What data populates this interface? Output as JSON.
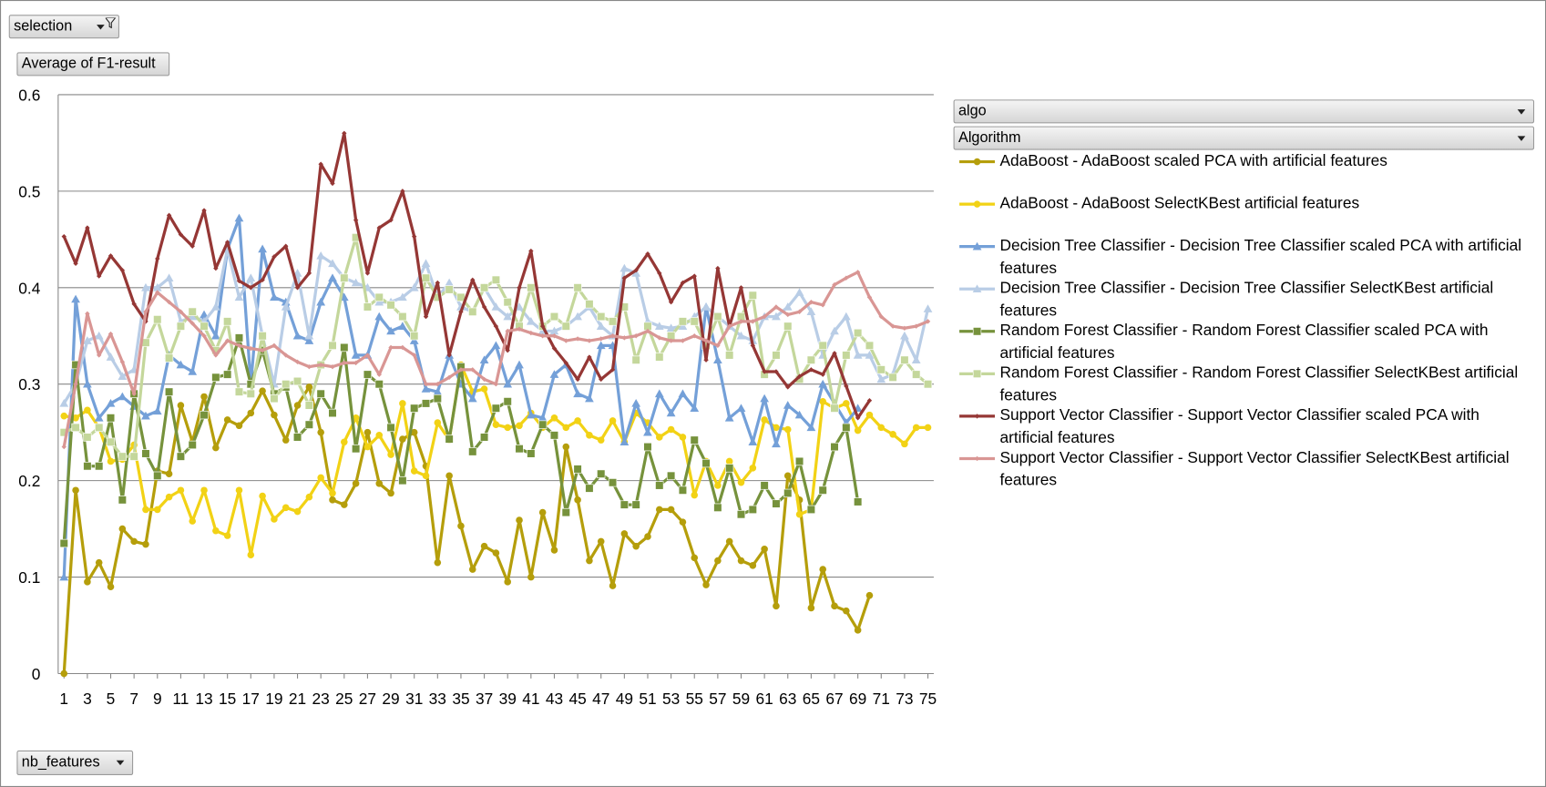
{
  "controls": {
    "report_filter": "selection",
    "values_field": "Average of F1-result",
    "legend_field": "algo",
    "legend_field_2": "Algorithm",
    "axis_field": "nb_features"
  },
  "chart_data": {
    "type": "line",
    "x": [
      1,
      2,
      3,
      4,
      5,
      6,
      7,
      8,
      9,
      10,
      11,
      12,
      13,
      14,
      15,
      16,
      17,
      18,
      19,
      20,
      21,
      22,
      23,
      24,
      25,
      26,
      27,
      28,
      29,
      30,
      31,
      32,
      33,
      34,
      35,
      36,
      37,
      38,
      39,
      40,
      41,
      42,
      43,
      44,
      45,
      46,
      47,
      48,
      49,
      50,
      51,
      52,
      53,
      54,
      55,
      56,
      57,
      58,
      59,
      60,
      61,
      62,
      63,
      64,
      65,
      66,
      67,
      68,
      69,
      70,
      71,
      72,
      73,
      74,
      75
    ],
    "xlim": [
      0.5,
      75.5
    ],
    "xticks": [
      1,
      3,
      5,
      7,
      9,
      11,
      13,
      15,
      17,
      19,
      21,
      23,
      25,
      27,
      29,
      31,
      33,
      35,
      37,
      39,
      41,
      43,
      45,
      47,
      49,
      51,
      53,
      55,
      57,
      59,
      61,
      63,
      65,
      67,
      69,
      71,
      73,
      75
    ],
    "ylim": [
      0,
      0.6
    ],
    "yticks": [
      0,
      0.1,
      0.2,
      0.3,
      0.4,
      0.5,
      0.6
    ],
    "grid": true,
    "legend": "right",
    "series": [
      {
        "name": "AdaBoost - AdaBoost scaled PCA with artificial features",
        "color": "#b59e0b",
        "marker": "circle",
        "values": [
          0.0,
          0.19,
          0.095,
          0.115,
          0.09,
          0.15,
          0.137,
          0.134,
          0.21,
          0.207,
          0.278,
          0.24,
          0.287,
          0.234,
          0.263,
          0.257,
          0.27,
          0.293,
          0.268,
          0.242,
          0.278,
          0.297,
          0.25,
          0.18,
          0.175,
          0.197,
          0.25,
          0.197,
          0.187,
          0.243,
          0.25,
          0.215,
          0.115,
          0.205,
          0.153,
          0.108,
          0.132,
          0.125,
          0.095,
          0.159,
          0.1,
          0.167,
          0.128,
          0.235,
          0.18,
          0.117,
          0.137,
          0.091,
          0.145,
          0.132,
          0.142,
          0.17,
          0.17,
          0.157,
          0.12,
          0.092,
          0.117,
          0.137,
          0.117,
          0.112,
          0.129,
          0.07,
          0.205,
          0.18,
          0.068,
          0.108,
          0.07,
          0.065,
          0.045,
          0.081,
          null,
          null,
          null,
          null,
          null
        ]
      },
      {
        "name": "AdaBoost - AdaBoost SelectKBest artificial features",
        "color": "#f2d215",
        "marker": "circle",
        "values": [
          0.267,
          0.265,
          0.273,
          0.255,
          0.22,
          0.222,
          0.237,
          0.17,
          0.17,
          0.183,
          0.19,
          0.158,
          0.19,
          0.148,
          0.143,
          0.19,
          0.123,
          0.184,
          0.16,
          0.172,
          0.168,
          0.183,
          0.203,
          0.187,
          0.24,
          0.265,
          0.235,
          0.247,
          0.227,
          0.28,
          0.21,
          0.205,
          0.26,
          0.242,
          0.32,
          0.292,
          0.295,
          0.258,
          0.255,
          0.257,
          0.27,
          0.255,
          0.265,
          0.255,
          0.262,
          0.247,
          0.242,
          0.262,
          0.24,
          0.27,
          0.26,
          0.245,
          0.253,
          0.245,
          0.185,
          0.22,
          0.195,
          0.22,
          0.198,
          0.213,
          0.263,
          0.255,
          0.253,
          0.165,
          0.17,
          0.282,
          0.275,
          0.28,
          0.252,
          0.268,
          0.255,
          0.248,
          0.238,
          0.255,
          0.255
        ]
      },
      {
        "name": "Decision Tree Classifier - Decision Tree Classifier scaled PCA with artificial features",
        "color": "#74a0d8",
        "marker": "triangle",
        "values": [
          0.1,
          0.388,
          0.3,
          0.265,
          0.28,
          0.287,
          0.277,
          0.267,
          0.272,
          0.33,
          0.32,
          0.313,
          0.372,
          0.35,
          0.44,
          0.472,
          0.3,
          0.44,
          0.39,
          0.385,
          0.35,
          0.345,
          0.385,
          0.41,
          0.39,
          0.33,
          0.33,
          0.37,
          0.355,
          0.36,
          0.345,
          0.295,
          0.292,
          0.33,
          0.3,
          0.285,
          0.325,
          0.34,
          0.3,
          0.32,
          0.268,
          0.265,
          0.31,
          0.32,
          0.29,
          0.285,
          0.34,
          0.34,
          0.24,
          0.28,
          0.25,
          0.29,
          0.27,
          0.29,
          0.275,
          0.38,
          0.325,
          0.265,
          0.275,
          0.24,
          0.285,
          0.238,
          0.278,
          0.268,
          0.255,
          0.3,
          0.28,
          0.26,
          0.275,
          null,
          null,
          null,
          null,
          null,
          null
        ]
      },
      {
        "name": "Decision Tree Classifier - Decision Tree Classifier SelectKBest artificial features",
        "color": "#b9cde6",
        "marker": "triangle",
        "values": [
          0.28,
          0.3,
          0.345,
          0.35,
          0.328,
          0.308,
          0.315,
          0.4,
          0.4,
          0.41,
          0.365,
          0.37,
          0.365,
          0.38,
          0.44,
          0.39,
          0.41,
          0.35,
          0.3,
          0.38,
          0.415,
          0.35,
          0.433,
          0.425,
          0.41,
          0.405,
          0.4,
          0.385,
          0.385,
          0.39,
          0.4,
          0.425,
          0.39,
          0.405,
          0.38,
          0.375,
          0.4,
          0.38,
          0.37,
          0.38,
          0.365,
          0.355,
          0.355,
          0.36,
          0.37,
          0.38,
          0.36,
          0.35,
          0.42,
          0.415,
          0.365,
          0.36,
          0.358,
          0.36,
          0.37,
          0.38,
          0.37,
          0.36,
          0.35,
          0.345,
          0.37,
          0.37,
          0.38,
          0.395,
          0.375,
          0.33,
          0.355,
          0.37,
          0.33,
          0.33,
          0.305,
          0.31,
          0.35,
          0.325,
          0.378
        ]
      },
      {
        "name": "Random Forest Classifier - Random Forest Classifier scaled PCA with artificial features",
        "color": "#76923c",
        "marker": "square",
        "values": [
          0.135,
          0.32,
          0.215,
          0.215,
          0.265,
          0.18,
          0.29,
          0.228,
          0.205,
          0.292,
          0.225,
          0.237,
          0.268,
          0.307,
          0.31,
          0.348,
          0.3,
          0.335,
          0.29,
          0.297,
          0.245,
          0.258,
          0.29,
          0.27,
          0.338,
          0.233,
          0.31,
          0.3,
          0.255,
          0.2,
          0.275,
          0.28,
          0.285,
          0.243,
          0.318,
          0.23,
          0.245,
          0.275,
          0.282,
          0.233,
          0.228,
          0.258,
          0.247,
          0.167,
          0.212,
          0.192,
          0.207,
          0.198,
          0.175,
          0.175,
          0.235,
          0.195,
          0.205,
          0.19,
          0.242,
          0.218,
          0.172,
          0.213,
          0.165,
          0.17,
          0.195,
          0.176,
          0.187,
          0.22,
          0.17,
          0.19,
          0.235,
          0.255,
          0.178,
          null,
          null,
          null,
          null,
          null,
          null
        ]
      },
      {
        "name": "Random Forest Classifier - Random Forest Classifier SelectKBest artificial features",
        "color": "#c4d79b",
        "marker": "square",
        "values": [
          0.25,
          0.255,
          0.245,
          0.255,
          0.24,
          0.225,
          0.225,
          0.343,
          0.367,
          0.327,
          0.36,
          0.375,
          0.36,
          0.335,
          0.365,
          0.292,
          0.29,
          0.35,
          0.285,
          0.3,
          0.303,
          0.278,
          0.32,
          0.34,
          0.41,
          0.452,
          0.38,
          0.39,
          0.382,
          0.37,
          0.35,
          0.41,
          0.39,
          0.398,
          0.39,
          0.375,
          0.4,
          0.408,
          0.385,
          0.36,
          0.4,
          0.36,
          0.37,
          0.36,
          0.4,
          0.383,
          0.37,
          0.365,
          0.38,
          0.325,
          0.36,
          0.328,
          0.35,
          0.365,
          0.365,
          0.34,
          0.37,
          0.33,
          0.37,
          0.392,
          0.31,
          0.33,
          0.36,
          0.305,
          0.325,
          0.34,
          0.275,
          0.33,
          0.353,
          0.34,
          0.315,
          0.307,
          0.325,
          0.31,
          0.3
        ]
      },
      {
        "name": "Support Vector Classifier - Support Vector Classifier scaled PCA with artificial features",
        "color": "#953735",
        "marker": "dash",
        "values": [
          0.453,
          0.425,
          0.462,
          0.412,
          0.433,
          0.418,
          0.383,
          0.365,
          0.43,
          0.475,
          0.455,
          0.443,
          0.48,
          0.42,
          0.447,
          0.407,
          0.4,
          0.408,
          0.432,
          0.443,
          0.4,
          0.415,
          0.528,
          0.508,
          0.56,
          0.47,
          0.415,
          0.462,
          0.47,
          0.5,
          0.453,
          0.37,
          0.405,
          0.33,
          0.375,
          0.408,
          0.38,
          0.36,
          0.335,
          0.4,
          0.438,
          0.36,
          0.337,
          0.322,
          0.305,
          0.328,
          0.305,
          0.315,
          0.41,
          0.418,
          0.435,
          0.415,
          0.385,
          0.405,
          0.412,
          0.325,
          0.42,
          0.36,
          0.4,
          0.34,
          0.313,
          0.313,
          0.297,
          0.308,
          0.315,
          0.31,
          0.332,
          0.298,
          0.265,
          0.283,
          null,
          null,
          null,
          null,
          null
        ]
      },
      {
        "name": "Support Vector Classifier - Support Vector Classifier SelectKBest artificial features",
        "color": "#d99694",
        "marker": "dash",
        "values": [
          0.235,
          0.3,
          0.373,
          0.33,
          0.352,
          0.323,
          0.29,
          0.375,
          0.395,
          0.385,
          0.375,
          0.363,
          0.35,
          0.33,
          0.345,
          0.34,
          0.337,
          0.335,
          0.34,
          0.33,
          0.323,
          0.318,
          0.32,
          0.318,
          0.322,
          0.322,
          0.33,
          0.31,
          0.338,
          0.338,
          0.33,
          0.3,
          0.3,
          0.307,
          0.315,
          0.315,
          0.305,
          0.3,
          0.355,
          0.357,
          0.353,
          0.35,
          0.35,
          0.345,
          0.347,
          0.345,
          0.347,
          0.35,
          0.348,
          0.35,
          0.355,
          0.348,
          0.345,
          0.345,
          0.35,
          0.345,
          0.34,
          0.36,
          0.365,
          0.365,
          0.37,
          0.38,
          0.372,
          0.375,
          0.385,
          0.382,
          0.403,
          0.41,
          0.416,
          0.39,
          0.37,
          0.36,
          0.358,
          0.36,
          0.365
        ]
      }
    ]
  }
}
